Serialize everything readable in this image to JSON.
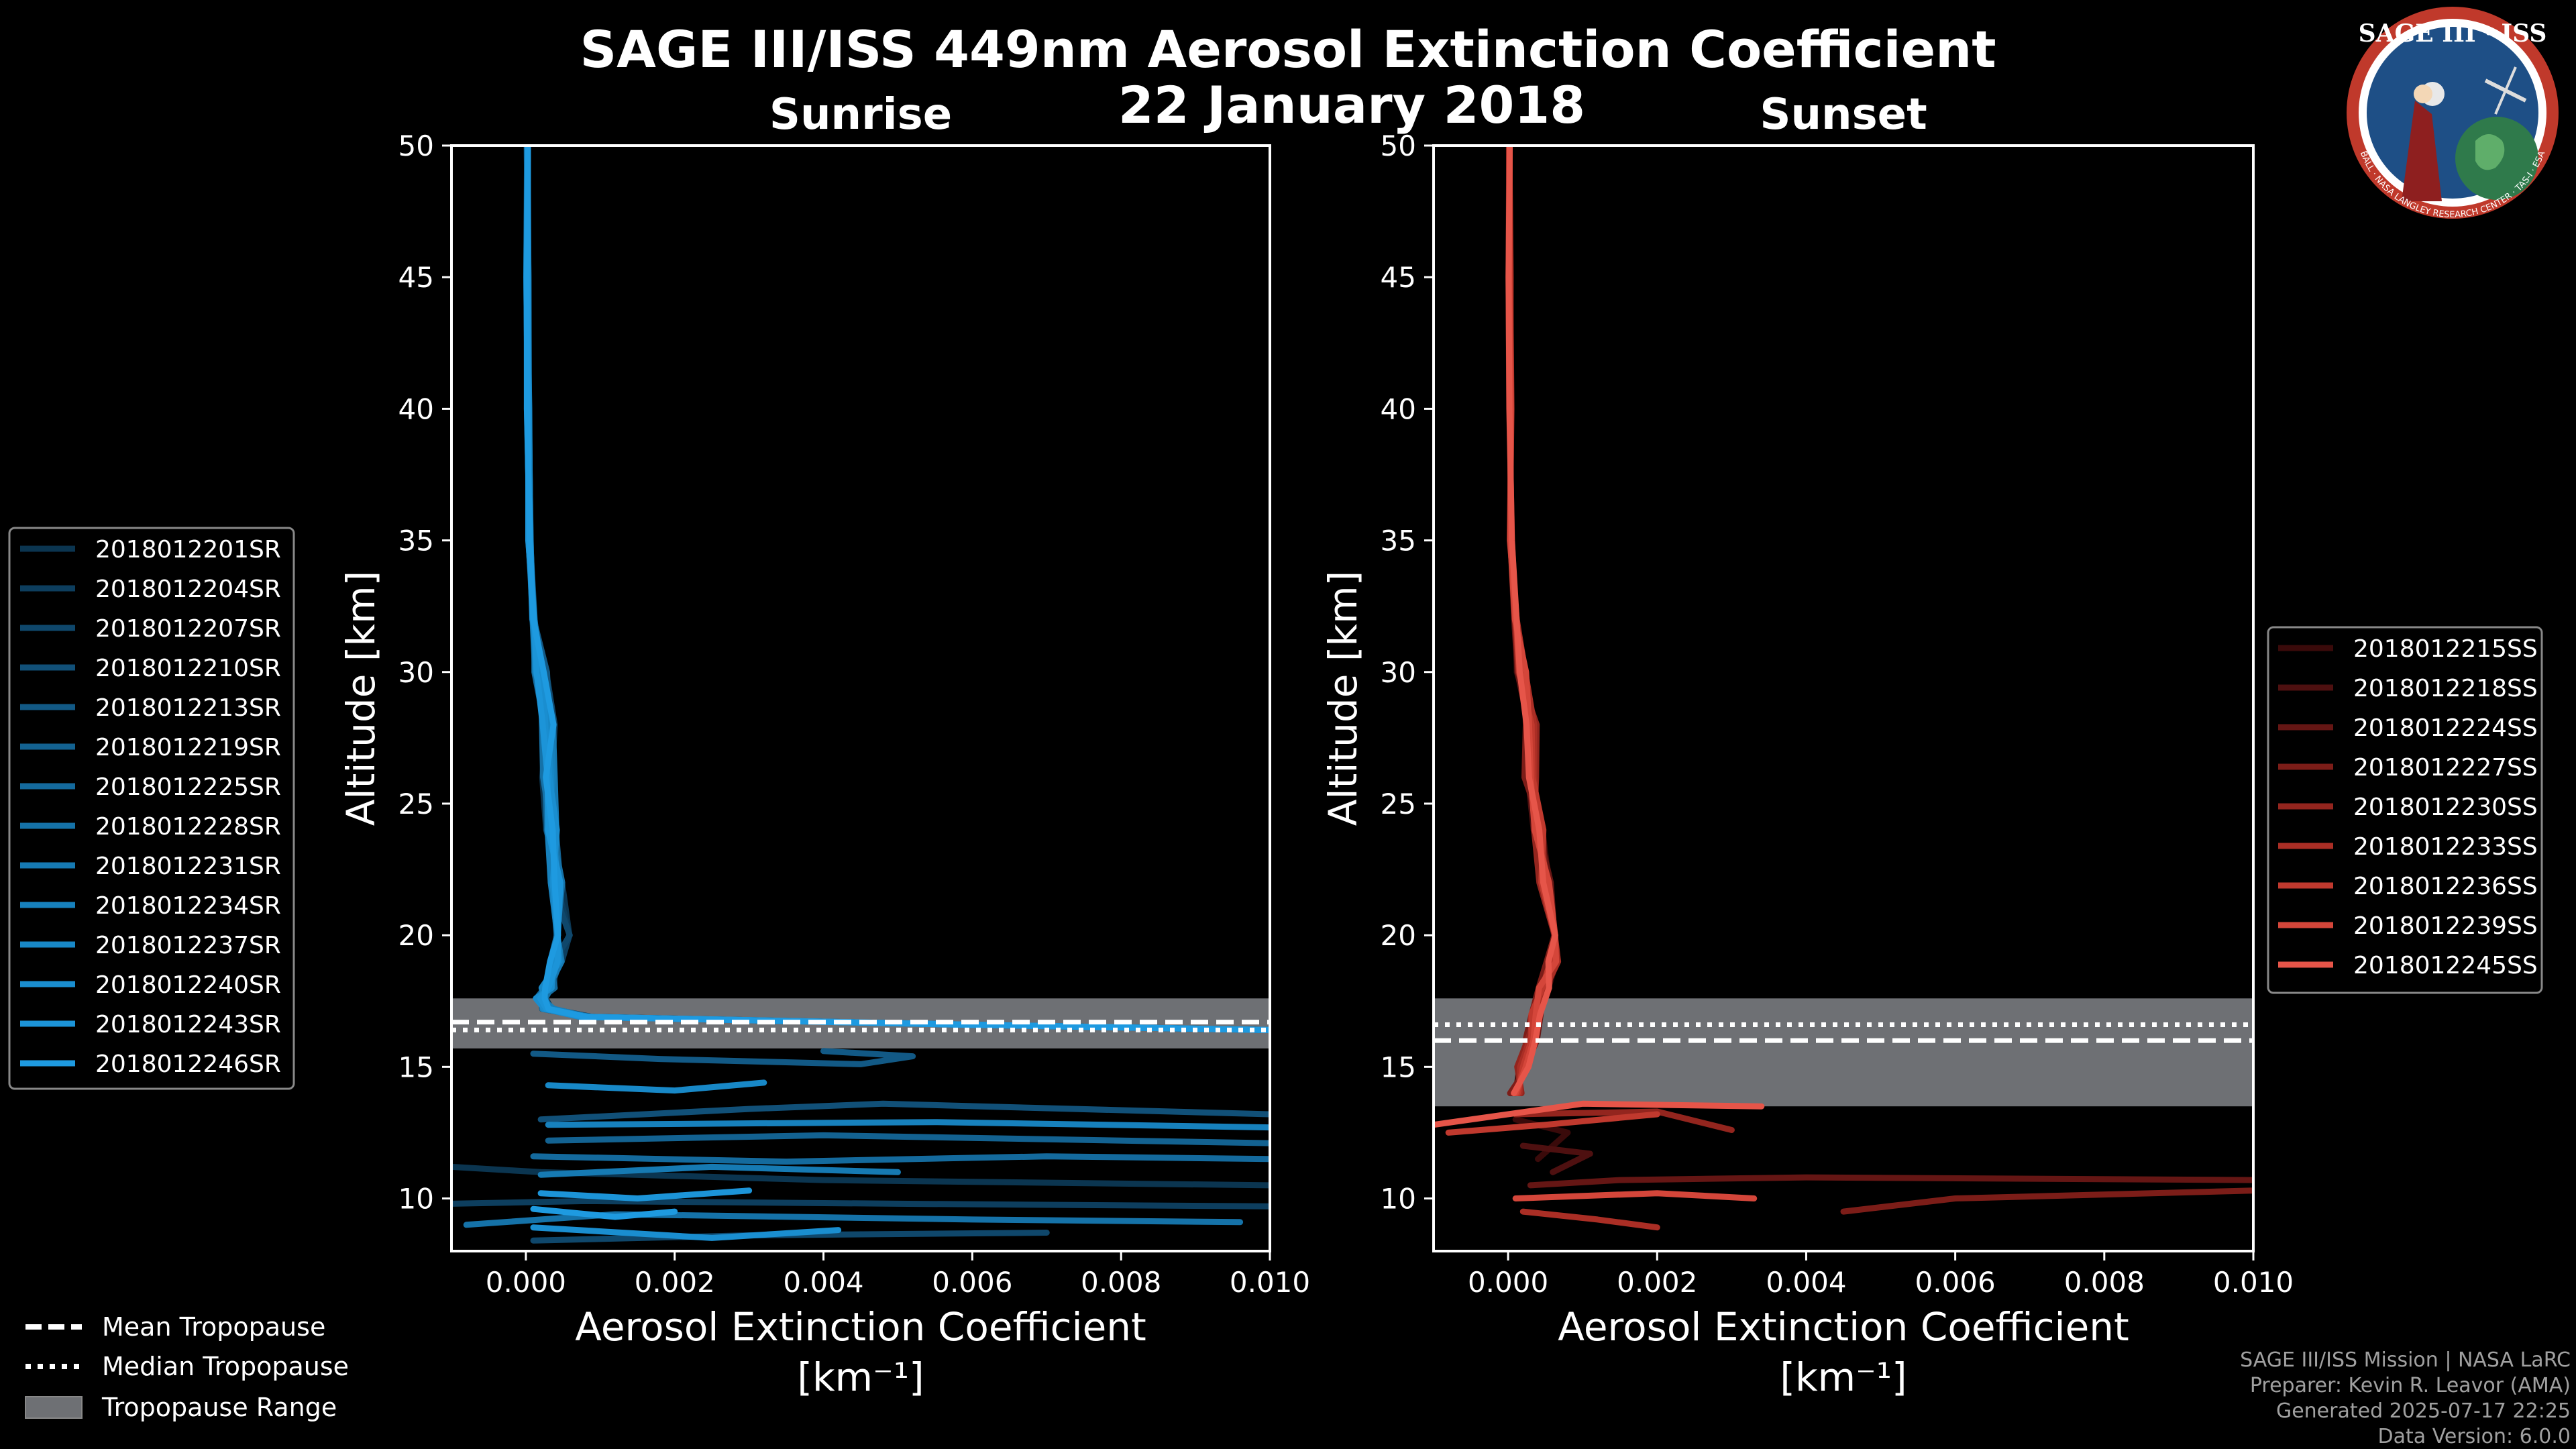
{
  "title": "SAGE III/ISS 449nm Aerosol Extinction Coefficient",
  "subtitle": "22 January 2018",
  "badge": {
    "label": "SAGE III · ISS",
    "ring_text": "BALL · NASA LANGLEY RESEARCH CENTER · TAS-I · ESA"
  },
  "footer": {
    "line1": "SAGE III/ISS Mission | NASA LaRC",
    "line2": "Preparer: Kevin R. Leavor (AMA)",
    "line3": "Generated 2025-07-17 22:25",
    "line4": "Data Version: 6.0.0"
  },
  "tropopause_legend": [
    {
      "label": "Mean Tropopause",
      "style": "dashed"
    },
    {
      "label": "Median Tropopause",
      "style": "dotted"
    },
    {
      "label": "Tropopause Range",
      "style": "patch"
    }
  ],
  "chart_data": [
    {
      "type": "line",
      "panel": "sunrise",
      "title": "Sunrise",
      "xlabel": "Aerosol Extinction Coefficient",
      "xlabel_units": "[km⁻¹]",
      "ylabel": "Altitude [km]",
      "xlim": [
        -0.001,
        0.01
      ],
      "ylim": [
        8,
        50
      ],
      "xticks": [
        0.0,
        0.002,
        0.004,
        0.006,
        0.008,
        0.01
      ],
      "xtick_labels": [
        "0.000",
        "0.002",
        "0.004",
        "0.006",
        "0.008",
        "0.010"
      ],
      "yticks": [
        10,
        15,
        20,
        25,
        30,
        35,
        40,
        45,
        50
      ],
      "ytick_labels": [
        "10",
        "15",
        "20",
        "25",
        "30",
        "35",
        "40",
        "45",
        "50"
      ],
      "legend_position": "left",
      "tropopause": {
        "mean": 16.7,
        "median": 16.4,
        "range": [
          15.7,
          17.6
        ]
      },
      "series": [
        {
          "name": "2018012201SR",
          "color": "#0b3550"
        },
        {
          "name": "2018012204SR",
          "color": "#0d3e5e"
        },
        {
          "name": "2018012207SR",
          "color": "#0f476b"
        },
        {
          "name": "2018012210SR",
          "color": "#115078"
        },
        {
          "name": "2018012213SR",
          "color": "#125985"
        },
        {
          "name": "2018012219SR",
          "color": "#136291"
        },
        {
          "name": "2018012225SR",
          "color": "#146a9d"
        },
        {
          "name": "2018012228SR",
          "color": "#1572a8"
        },
        {
          "name": "2018012231SR",
          "color": "#167ab3"
        },
        {
          "name": "2018012234SR",
          "color": "#1781bd"
        },
        {
          "name": "2018012237SR",
          "color": "#1888c7"
        },
        {
          "name": "2018012240SR",
          "color": "#1a8ed0"
        },
        {
          "name": "2018012243SR",
          "color": "#1c94d8"
        },
        {
          "name": "2018012246SR",
          "color": "#1e9ae0"
        }
      ],
      "profile_points": [
        [
          2e-05,
          50
        ],
        [
          2e-05,
          45
        ],
        [
          3e-05,
          40
        ],
        [
          5e-05,
          35
        ],
        [
          0.0001,
          32
        ],
        [
          0.0002,
          30
        ],
        [
          0.0003,
          28
        ],
        [
          0.0003,
          26
        ],
        [
          0.00035,
          24
        ],
        [
          0.0004,
          22
        ],
        [
          0.0005,
          20
        ],
        [
          0.0004,
          19
        ],
        [
          0.0003,
          18
        ],
        [
          0.0002,
          17.6
        ],
        [
          0.0003,
          17.2
        ],
        [
          0.0008,
          16.9
        ],
        [
          0.006,
          16.6
        ],
        [
          0.01,
          16.4
        ]
      ],
      "low_excursions": [
        {
          "series": 0,
          "points": [
            [
              -0.001,
              11.2
            ],
            [
              0.0002,
              11.0
            ],
            [
              0.004,
              10.7
            ],
            [
              0.01,
              10.5
            ]
          ]
        },
        {
          "series": 1,
          "points": [
            [
              -0.001,
              9.8
            ],
            [
              0.0008,
              9.9
            ],
            [
              0.005,
              9.8
            ],
            [
              0.01,
              9.7
            ]
          ]
        },
        {
          "series": 2,
          "points": [
            [
              0.0001,
              8.4
            ],
            [
              0.003,
              8.6
            ],
            [
              0.007,
              8.7
            ]
          ]
        },
        {
          "series": 3,
          "points": [
            [
              0.0002,
              13.0
            ],
            [
              0.003,
              13.4
            ],
            [
              0.0048,
              13.6
            ],
            [
              0.01,
              13.2
            ]
          ]
        },
        {
          "series": 4,
          "points": [
            [
              0.0001,
              15.5
            ],
            [
              0.0018,
              15.3
            ],
            [
              0.0045,
              15.1
            ],
            [
              0.0052,
              15.4
            ],
            [
              0.004,
              15.6
            ]
          ]
        },
        {
          "series": 5,
          "points": [
            [
              0.0003,
              12.2
            ],
            [
              0.004,
              12.4
            ],
            [
              0.01,
              12.1
            ]
          ]
        },
        {
          "series": 6,
          "points": [
            [
              0.0001,
              11.6
            ],
            [
              0.0035,
              11.4
            ],
            [
              0.007,
              11.6
            ],
            [
              0.01,
              11.5
            ]
          ]
        },
        {
          "series": 7,
          "points": [
            [
              -0.0008,
              9.0
            ],
            [
              0.0012,
              9.4
            ],
            [
              0.006,
              9.2
            ],
            [
              0.0096,
              9.1
            ]
          ]
        },
        {
          "series": 8,
          "points": [
            [
              0.0002,
              10.9
            ],
            [
              0.0025,
              11.2
            ],
            [
              0.005,
              11.0
            ]
          ]
        },
        {
          "series": 9,
          "points": [
            [
              0.0003,
              12.8
            ],
            [
              0.0055,
              12.9
            ],
            [
              0.01,
              12.7
            ]
          ]
        },
        {
          "series": 10,
          "points": [
            [
              0.0003,
              14.3
            ],
            [
              0.002,
              14.1
            ],
            [
              0.0032,
              14.4
            ]
          ]
        },
        {
          "series": 11,
          "points": [
            [
              0.0001,
              8.9
            ],
            [
              0.0025,
              8.5
            ],
            [
              0.0042,
              8.8
            ]
          ]
        },
        {
          "series": 12,
          "points": [
            [
              0.0002,
              10.2
            ],
            [
              0.0015,
              10.0
            ],
            [
              0.003,
              10.3
            ]
          ]
        },
        {
          "series": 13,
          "points": [
            [
              0.0001,
              9.6
            ],
            [
              0.0012,
              9.3
            ],
            [
              0.002,
              9.5
            ]
          ]
        }
      ]
    },
    {
      "type": "line",
      "panel": "sunset",
      "title": "Sunset",
      "xlabel": "Aerosol Extinction Coefficient",
      "xlabel_units": "[km⁻¹]",
      "ylabel": "Altitude [km]",
      "xlim": [
        -0.001,
        0.01
      ],
      "ylim": [
        8,
        50
      ],
      "xticks": [
        0.0,
        0.002,
        0.004,
        0.006,
        0.008,
        0.01
      ],
      "xtick_labels": [
        "0.000",
        "0.002",
        "0.004",
        "0.006",
        "0.008",
        "0.010"
      ],
      "yticks": [
        10,
        15,
        20,
        25,
        30,
        35,
        40,
        45,
        50
      ],
      "ytick_labels": [
        "10",
        "15",
        "20",
        "25",
        "30",
        "35",
        "40",
        "45",
        "50"
      ],
      "legend_position": "right",
      "tropopause": {
        "mean": 16.0,
        "median": 16.6,
        "range": [
          13.5,
          17.6
        ]
      },
      "series": [
        {
          "name": "2018012215SS",
          "color": "#3a0a0a"
        },
        {
          "name": "2018012218SS",
          "color": "#4e1010"
        },
        {
          "name": "2018012224SS",
          "color": "#651614"
        },
        {
          "name": "2018012227SS",
          "color": "#7c1d18"
        },
        {
          "name": "2018012230SS",
          "color": "#93251e"
        },
        {
          "name": "2018012233SS",
          "color": "#aa2e25"
        },
        {
          "name": "2018012236SS",
          "color": "#c0392e"
        },
        {
          "name": "2018012239SS",
          "color": "#d4463a"
        },
        {
          "name": "2018012245SS",
          "color": "#e65549"
        }
      ],
      "profile_points": [
        [
          2e-05,
          50
        ],
        [
          2e-05,
          45
        ],
        [
          3e-05,
          40
        ],
        [
          4e-05,
          35
        ],
        [
          0.0001,
          32
        ],
        [
          0.0002,
          30
        ],
        [
          0.0003,
          28
        ],
        [
          0.0003,
          26
        ],
        [
          0.0004,
          24
        ],
        [
          0.0005,
          22
        ],
        [
          0.0007,
          20
        ],
        [
          0.0006,
          19
        ],
        [
          0.0005,
          18
        ],
        [
          0.0004,
          17
        ],
        [
          0.0003,
          16
        ],
        [
          0.0002,
          15
        ],
        [
          0.0001,
          14
        ]
      ],
      "low_excursions": [
        {
          "series": 0,
          "points": [
            [
              0.0001,
              13.0
            ],
            [
              0.0008,
              12.5
            ],
            [
              0.0004,
              11.5
            ]
          ]
        },
        {
          "series": 1,
          "points": [
            [
              0.0002,
              12.0
            ],
            [
              0.0011,
              11.7
            ],
            [
              0.0006,
              11.0
            ]
          ]
        },
        {
          "series": 2,
          "points": [
            [
              0.0003,
              10.5
            ],
            [
              0.0015,
              10.7
            ],
            [
              0.004,
              10.8
            ],
            [
              0.01,
              10.7
            ]
          ]
        },
        {
          "series": 3,
          "points": [
            [
              0.0045,
              9.5
            ],
            [
              0.006,
              10.0
            ],
            [
              0.01,
              10.3
            ]
          ]
        },
        {
          "series": 4,
          "points": [
            [
              0.0001,
              13.2
            ],
            [
              0.002,
              13.3
            ],
            [
              0.003,
              12.6
            ]
          ]
        },
        {
          "series": 5,
          "points": [
            [
              0.0002,
              9.5
            ],
            [
              0.0012,
              9.2
            ],
            [
              0.002,
              8.9
            ]
          ]
        },
        {
          "series": 6,
          "points": [
            [
              -0.0008,
              12.5
            ],
            [
              0.0005,
              12.8
            ],
            [
              0.002,
              13.2
            ]
          ]
        },
        {
          "series": 7,
          "points": [
            [
              0.0001,
              10.0
            ],
            [
              0.002,
              10.2
            ],
            [
              0.0033,
              10.0
            ]
          ]
        },
        {
          "series": 8,
          "points": [
            [
              -0.001,
              12.8
            ],
            [
              0.001,
              13.6
            ],
            [
              0.0034,
              13.5
            ]
          ]
        }
      ]
    }
  ]
}
